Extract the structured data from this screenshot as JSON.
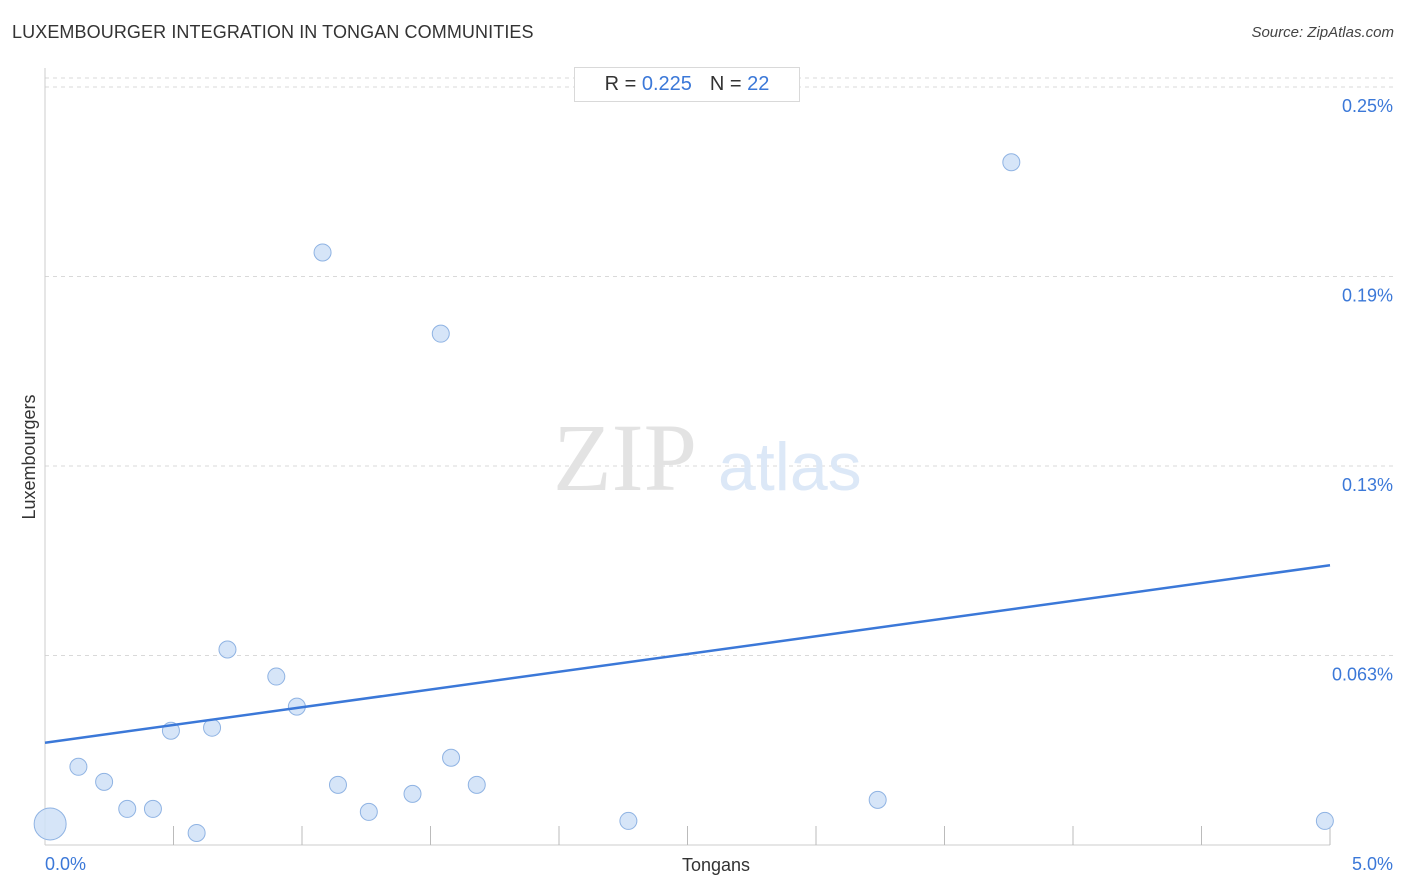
{
  "title": "LUXEMBOURGER INTEGRATION IN TONGAN COMMUNITIES",
  "source": "Source: ZipAtlas.com",
  "stats": {
    "r_label": "R =",
    "r_value": "0.225",
    "n_label": "N =",
    "n_value": "22"
  },
  "watermark": {
    "zip": "ZIP",
    "atlas": "atlas"
  },
  "colors": {
    "accent": "#3b78d8",
    "point_fill": "#cfe0f7",
    "point_stroke": "#8fb3e3",
    "grid": "#d9d9d9"
  },
  "chart_data": {
    "type": "scatter",
    "title": "LUXEMBOURGER INTEGRATION IN TONGAN COMMUNITIES",
    "xlabel": "Tongans",
    "ylabel": "Luxembourgers",
    "xlim": [
      0,
      5.0
    ],
    "ylim": [
      0,
      0.255
    ],
    "x_tick_labels": [
      {
        "value": 0,
        "label": "0.0%"
      },
      {
        "value": 5.0,
        "label": "5.0%"
      }
    ],
    "y_tick_labels": [
      {
        "value": 0.063,
        "label": "0.063%"
      },
      {
        "value": 0.126,
        "label": "0.13%"
      },
      {
        "value": 0.189,
        "label": "0.19%"
      },
      {
        "value": 0.252,
        "label": "0.25%"
      }
    ],
    "grid": "horizontal dashed",
    "points": [
      {
        "x": 0.02,
        "y": 0.007,
        "size": 3
      },
      {
        "x": 0.13,
        "y": 0.026,
        "size": 1
      },
      {
        "x": 0.23,
        "y": 0.021,
        "size": 1
      },
      {
        "x": 0.32,
        "y": 0.012,
        "size": 1
      },
      {
        "x": 0.42,
        "y": 0.012,
        "size": 1
      },
      {
        "x": 0.49,
        "y": 0.038,
        "size": 1
      },
      {
        "x": 0.59,
        "y": 0.004,
        "size": 1
      },
      {
        "x": 0.65,
        "y": 0.039,
        "size": 1
      },
      {
        "x": 0.71,
        "y": 0.065,
        "size": 1
      },
      {
        "x": 0.9,
        "y": 0.056,
        "size": 1
      },
      {
        "x": 0.98,
        "y": 0.046,
        "size": 1
      },
      {
        "x": 1.08,
        "y": 0.197,
        "size": 1
      },
      {
        "x": 1.14,
        "y": 0.02,
        "size": 1
      },
      {
        "x": 1.26,
        "y": 0.011,
        "size": 1
      },
      {
        "x": 1.43,
        "y": 0.017,
        "size": 1
      },
      {
        "x": 1.54,
        "y": 0.17,
        "size": 1
      },
      {
        "x": 1.58,
        "y": 0.029,
        "size": 1
      },
      {
        "x": 1.68,
        "y": 0.02,
        "size": 1
      },
      {
        "x": 2.27,
        "y": 0.008,
        "size": 1
      },
      {
        "x": 3.24,
        "y": 0.015,
        "size": 1
      },
      {
        "x": 3.76,
        "y": 0.227,
        "size": 1
      },
      {
        "x": 4.98,
        "y": 0.008,
        "size": 1
      }
    ],
    "trendline": {
      "x": [
        0,
        5.0
      ],
      "y": [
        0.034,
        0.093
      ]
    }
  }
}
